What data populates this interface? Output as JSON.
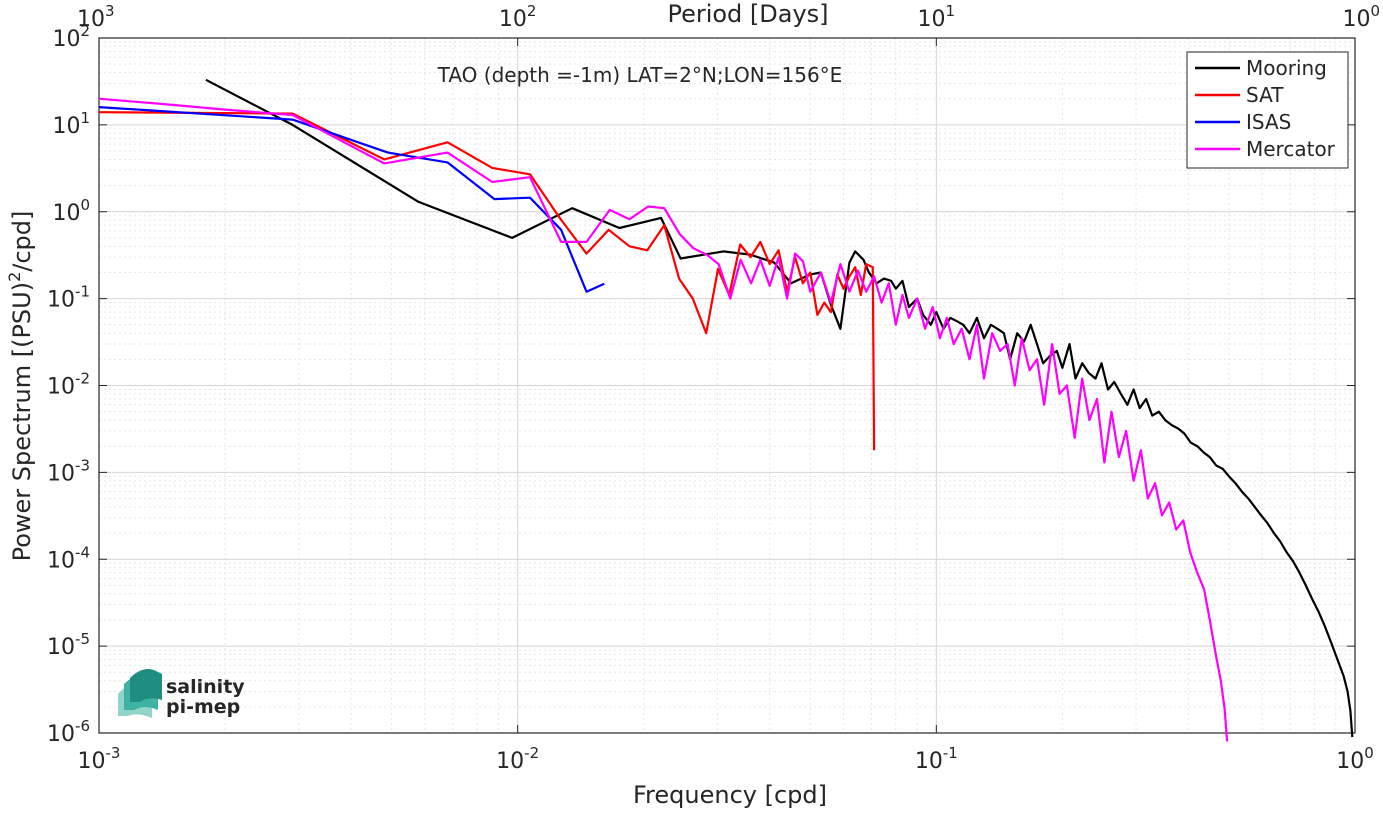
{
  "chart_data": {
    "type": "line",
    "title": "TAO (depth =-1m) LAT=2°N;LON=156°E",
    "xlabel": "Frequency [cpd]",
    "ylabel": "Power Spectrum [(PSU)²/cpd]",
    "x2label": "Period [Days]",
    "xscale": "log",
    "yscale": "log",
    "xlim": [
      0.001,
      1
    ],
    "ylim": [
      1e-06,
      100
    ],
    "grid": true,
    "legend_position": "top-right",
    "x_ticks": [
      {
        "value": 0.001,
        "base": "10",
        "exp": "-3"
      },
      {
        "value": 0.01,
        "base": "10",
        "exp": "-2"
      },
      {
        "value": 0.1,
        "base": "10",
        "exp": "-1"
      },
      {
        "value": 1,
        "base": "10",
        "exp": "0"
      }
    ],
    "x2_ticks": [
      {
        "value": 0.001,
        "base": "10",
        "exp": "3"
      },
      {
        "value": 0.01,
        "base": "10",
        "exp": "2"
      },
      {
        "value": 0.1,
        "base": "10",
        "exp": "1"
      },
      {
        "value": 1,
        "base": "10",
        "exp": "0"
      }
    ],
    "y_ticks": [
      {
        "value": 100,
        "base": "10",
        "exp": "2"
      },
      {
        "value": 10,
        "base": "10",
        "exp": "1"
      },
      {
        "value": 1,
        "base": "10",
        "exp": "0"
      },
      {
        "value": 0.1,
        "base": "10",
        "exp": "-1"
      },
      {
        "value": 0.01,
        "base": "10",
        "exp": "-2"
      },
      {
        "value": 0.001,
        "base": "10",
        "exp": "-3"
      },
      {
        "value": 0.0001,
        "base": "10",
        "exp": "-4"
      },
      {
        "value": 1e-05,
        "base": "10",
        "exp": "-5"
      },
      {
        "value": 1e-06,
        "base": "10",
        "exp": "-6"
      }
    ],
    "series": [
      {
        "name": "Mooring",
        "color": "#000000",
        "x": [
          0.0018,
          0.0029,
          0.0058,
          0.0097,
          0.0135,
          0.0175,
          0.022,
          0.0245,
          0.031,
          0.036,
          0.041,
          0.045,
          0.05,
          0.053,
          0.056,
          0.059,
          0.062,
          0.064,
          0.067,
          0.069,
          0.072,
          0.075,
          0.078,
          0.08,
          0.083,
          0.086,
          0.09,
          0.093,
          0.097,
          0.1,
          0.104,
          0.108,
          0.112,
          0.116,
          0.12,
          0.125,
          0.13,
          0.135,
          0.14,
          0.145,
          0.15,
          0.156,
          0.162,
          0.168,
          0.174,
          0.18,
          0.187,
          0.194,
          0.2,
          0.208,
          0.215,
          0.223,
          0.231,
          0.24,
          0.248,
          0.257,
          0.266,
          0.276,
          0.286,
          0.296,
          0.306,
          0.317,
          0.328,
          0.34,
          0.352,
          0.365,
          0.378,
          0.391,
          0.405,
          0.42,
          0.435,
          0.45,
          0.466,
          0.483,
          0.5,
          0.518,
          0.537,
          0.556,
          0.576,
          0.597,
          0.618,
          0.64,
          0.663,
          0.687,
          0.711,
          0.737,
          0.763,
          0.79,
          0.818,
          0.847,
          0.877,
          0.908,
          0.94,
          0.96,
          0.975,
          0.985
        ],
        "y": [
          33,
          10,
          1.3,
          0.5,
          1.1,
          0.65,
          0.85,
          0.29,
          0.35,
          0.32,
          0.26,
          0.15,
          0.19,
          0.2,
          0.085,
          0.045,
          0.26,
          0.35,
          0.28,
          0.2,
          0.15,
          0.17,
          0.16,
          0.13,
          0.16,
          0.08,
          0.1,
          0.065,
          0.05,
          0.07,
          0.045,
          0.06,
          0.055,
          0.05,
          0.04,
          0.06,
          0.035,
          0.05,
          0.045,
          0.04,
          0.02,
          0.04,
          0.032,
          0.05,
          0.03,
          0.018,
          0.022,
          0.025,
          0.016,
          0.03,
          0.012,
          0.018,
          0.014,
          0.012,
          0.018,
          0.009,
          0.011,
          0.008,
          0.006,
          0.009,
          0.0055,
          0.007,
          0.0045,
          0.005,
          0.004,
          0.0035,
          0.0032,
          0.0028,
          0.0022,
          0.002,
          0.0017,
          0.0015,
          0.0012,
          0.0011,
          0.0009,
          0.00075,
          0.0006,
          0.0005,
          0.0004,
          0.00032,
          0.00026,
          0.0002,
          0.00016,
          0.00012,
          9.5e-05,
          7e-05,
          5e-05,
          3.5e-05,
          2.5e-05,
          1.7e-05,
          1.1e-05,
          7e-06,
          4.5e-06,
          3e-06,
          1.8e-06,
          9e-07
        ]
      },
      {
        "name": "SAT",
        "color": "#ff0000",
        "x": [
          0.001,
          0.0029,
          0.0048,
          0.0068,
          0.0087,
          0.0107,
          0.0126,
          0.0146,
          0.0165,
          0.0185,
          0.0204,
          0.0224,
          0.0243,
          0.0262,
          0.0282,
          0.0301,
          0.032,
          0.034,
          0.036,
          0.038,
          0.04,
          0.042,
          0.044,
          0.046,
          0.048,
          0.05,
          0.052,
          0.054,
          0.056,
          0.058,
          0.06,
          0.062,
          0.064,
          0.066,
          0.068,
          0.0705,
          0.071
        ],
        "y": [
          14,
          13.5,
          4,
          6.3,
          3.2,
          2.7,
          0.85,
          0.33,
          0.62,
          0.4,
          0.36,
          0.7,
          0.17,
          0.1,
          0.04,
          0.22,
          0.11,
          0.42,
          0.3,
          0.45,
          0.25,
          0.36,
          0.12,
          0.3,
          0.15,
          0.2,
          0.065,
          0.09,
          0.07,
          0.19,
          0.13,
          0.18,
          0.23,
          0.11,
          0.25,
          0.23,
          0.0018
        ]
      },
      {
        "name": "ISAS",
        "color": "#0000ff",
        "x": [
          0.001,
          0.0029,
          0.0049,
          0.0068,
          0.0088,
          0.0107,
          0.0127,
          0.0146,
          0.0161
        ],
        "y": [
          16,
          11.5,
          4.8,
          3.7,
          1.4,
          1.45,
          0.62,
          0.12,
          0.148
        ]
      },
      {
        "name": "Mercator",
        "color": "#ff00ff",
        "x": [
          0.001,
          0.0015,
          0.002,
          0.0029,
          0.0048,
          0.0068,
          0.0087,
          0.0107,
          0.0127,
          0.0146,
          0.0166,
          0.0185,
          0.0205,
          0.0224,
          0.0244,
          0.0263,
          0.0283,
          0.0302,
          0.0322,
          0.0341,
          0.0361,
          0.038,
          0.04,
          0.042,
          0.044,
          0.046,
          0.048,
          0.05,
          0.053,
          0.056,
          0.059,
          0.062,
          0.065,
          0.068,
          0.071,
          0.074,
          0.077,
          0.08,
          0.083,
          0.086,
          0.09,
          0.094,
          0.098,
          0.102,
          0.106,
          0.11,
          0.115,
          0.12,
          0.125,
          0.13,
          0.136,
          0.142,
          0.148,
          0.154,
          0.16,
          0.167,
          0.174,
          0.181,
          0.189,
          0.197,
          0.205,
          0.214,
          0.223,
          0.232,
          0.242,
          0.252,
          0.262,
          0.273,
          0.284,
          0.296,
          0.308,
          0.32,
          0.333,
          0.346,
          0.36,
          0.374,
          0.389,
          0.404,
          0.42,
          0.436,
          0.45,
          0.465,
          0.478,
          0.488,
          0.495
        ],
        "y": [
          20,
          17,
          15,
          13,
          3.6,
          4.8,
          2.2,
          2.5,
          0.45,
          0.45,
          1.05,
          0.82,
          1.15,
          1.1,
          0.55,
          0.38,
          0.32,
          0.25,
          0.1,
          0.28,
          0.15,
          0.28,
          0.14,
          0.3,
          0.1,
          0.33,
          0.27,
          0.12,
          0.2,
          0.09,
          0.25,
          0.12,
          0.21,
          0.12,
          0.18,
          0.09,
          0.15,
          0.05,
          0.11,
          0.06,
          0.1,
          0.045,
          0.08,
          0.035,
          0.06,
          0.03,
          0.045,
          0.02,
          0.05,
          0.012,
          0.04,
          0.025,
          0.03,
          0.01,
          0.035,
          0.015,
          0.02,
          0.006,
          0.03,
          0.008,
          0.01,
          0.0025,
          0.012,
          0.004,
          0.007,
          0.0013,
          0.005,
          0.0015,
          0.003,
          0.0008,
          0.0018,
          0.0005,
          0.00075,
          0.00032,
          0.00045,
          0.00022,
          0.00028,
          0.00012,
          7e-05,
          4.5e-05,
          2e-05,
          8e-06,
          4e-06,
          1.9e-06,
          8e-07
        ]
      }
    ],
    "logo": {
      "line1": "salinity",
      "line2": "pi-mep",
      "color": "#2aa79b"
    }
  }
}
